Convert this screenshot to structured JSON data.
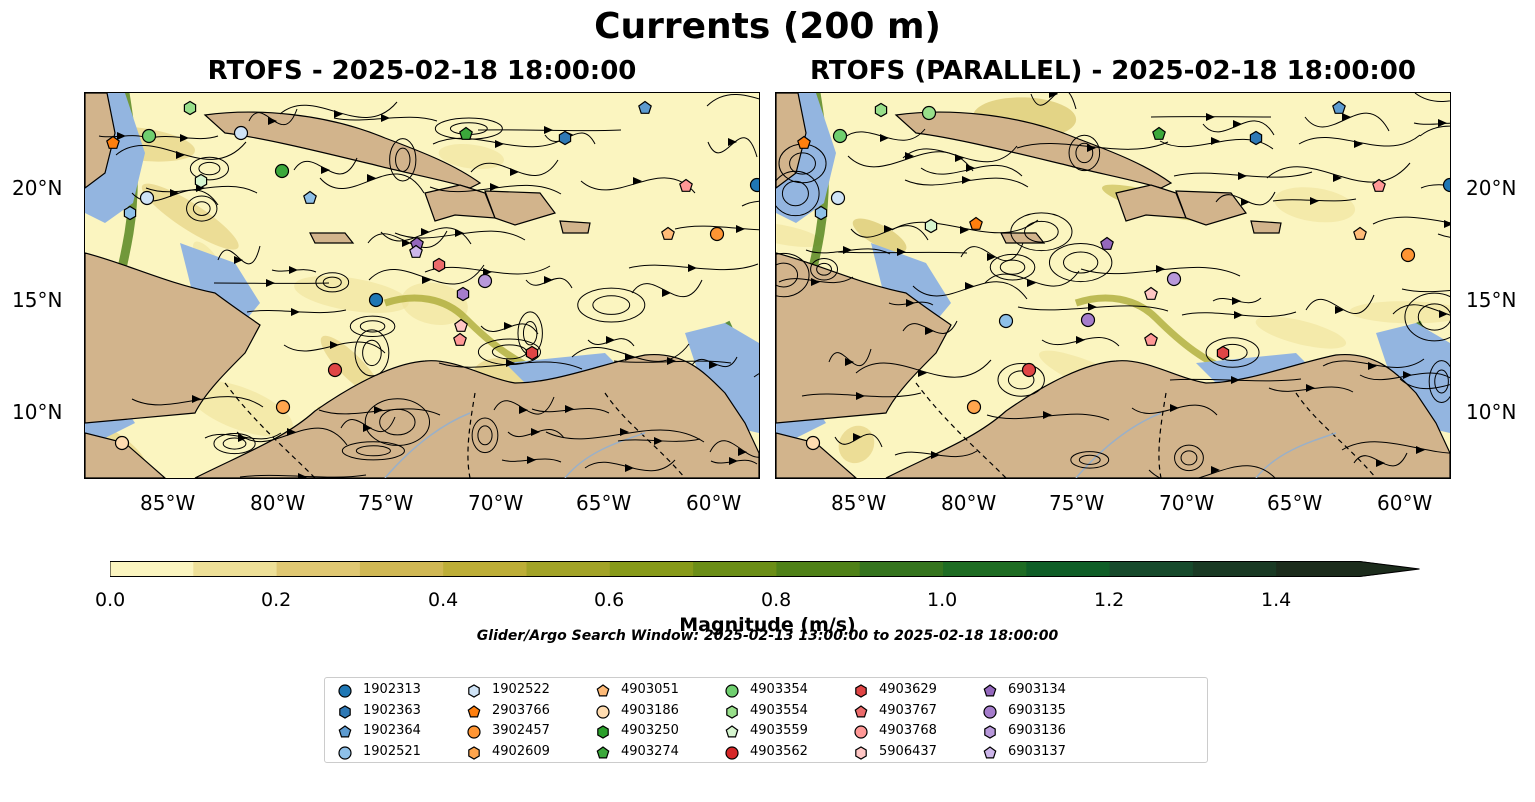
{
  "title": "Currents (200 m)",
  "panels": [
    {
      "title": "RTOFS - 2025-02-18 18:00:00"
    },
    {
      "title": "RTOFS (PARALLEL) - 2025-02-18 18:00:00"
    }
  ],
  "lat_labels": [
    "20°N",
    "15°N",
    "10°N"
  ],
  "lon_labels": [
    "85°W",
    "80°W",
    "75°W",
    "70°W",
    "65°W",
    "60°W"
  ],
  "colorbar": {
    "label": "Magnitude (m/s)",
    "ticks": [
      "0.0",
      "0.2",
      "0.4",
      "0.6",
      "0.8",
      "1.0",
      "1.2",
      "1.4"
    ],
    "colors": [
      "#fbf5c0",
      "#eee098",
      "#e0c873",
      "#d0b855",
      "#bdae38",
      "#a2a328",
      "#879a1a",
      "#6b8e17",
      "#4f8118",
      "#35741e",
      "#1e6c23",
      "#0f5e27",
      "#174a2c",
      "#1a3a24",
      "#1c2c1c"
    ]
  },
  "colors": {
    "land": "#d2b48c",
    "shallow_water": "#93b5e0",
    "ocean_low": "#fbf5c0"
  },
  "search_window": "Glider/Argo Search Window: 2025-02-13 13:00:00 to 2025-02-18 18:00:00",
  "legend": [
    {
      "id": "1902313",
      "color": "#1f77b4",
      "marker": "circle"
    },
    {
      "id": "1902363",
      "color": "#2f79b5",
      "marker": "hexagon"
    },
    {
      "id": "1902364",
      "color": "#5d9bd0",
      "marker": "pentagon"
    },
    {
      "id": "1902521",
      "color": "#8ec0e8",
      "marker": "circle"
    },
    {
      "id": "1902522",
      "color": "#cfe3f6",
      "marker": "hexagon"
    },
    {
      "id": "2903766",
      "color": "#ff7f0e",
      "marker": "pentagon"
    },
    {
      "id": "3902457",
      "color": "#ff9533",
      "marker": "circle"
    },
    {
      "id": "4902609",
      "color": "#ffa54d",
      "marker": "hexagon"
    },
    {
      "id": "4903051",
      "color": "#ffbb78",
      "marker": "pentagon"
    },
    {
      "id": "4903186",
      "color": "#ffdcb0",
      "marker": "circle"
    },
    {
      "id": "4903250",
      "color": "#2ca02c",
      "marker": "hexagon"
    },
    {
      "id": "4903274",
      "color": "#3ba83b",
      "marker": "pentagon"
    },
    {
      "id": "4903354",
      "color": "#6fcf6f",
      "marker": "circle"
    },
    {
      "id": "4903554",
      "color": "#98df8a",
      "marker": "hexagon"
    },
    {
      "id": "4903559",
      "color": "#d6f5cf",
      "marker": "pentagon"
    },
    {
      "id": "4903562",
      "color": "#d62728",
      "marker": "circle"
    },
    {
      "id": "4903629",
      "color": "#e04545",
      "marker": "hexagon"
    },
    {
      "id": "4903767",
      "color": "#ec6b6b",
      "marker": "pentagon"
    },
    {
      "id": "4903768",
      "color": "#ff9896",
      "marker": "circle"
    },
    {
      "id": "5906437",
      "color": "#ffc6c4",
      "marker": "hexagon"
    },
    {
      "id": "6903134",
      "color": "#9467bd",
      "marker": "pentagon"
    },
    {
      "id": "6903135",
      "color": "#a57ccb",
      "marker": "circle"
    },
    {
      "id": "6903136",
      "color": "#b898da",
      "marker": "hexagon"
    },
    {
      "id": "6903137",
      "color": "#cdb6ea",
      "marker": "pentagon"
    }
  ]
}
